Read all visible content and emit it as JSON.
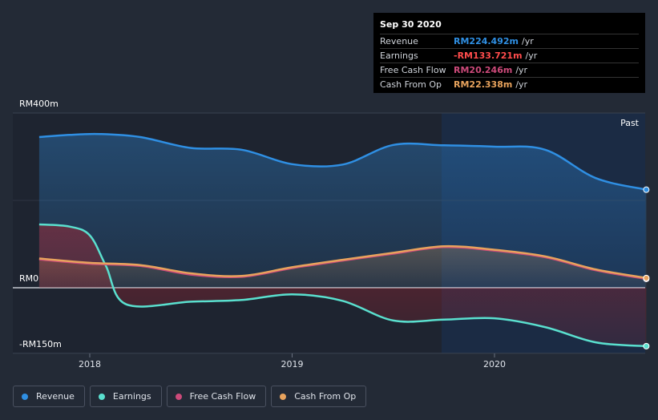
{
  "chart_data": {
    "type": "area",
    "x_ticks": [
      "2018",
      "2019",
      "2020"
    ],
    "y_ticks": [
      "RM400m",
      "RM0",
      "-RM150m"
    ],
    "ylim": [
      -150,
      400
    ],
    "past_label": "Past",
    "series": [
      {
        "name": "Revenue",
        "color": "#2f8fe3",
        "points": [
          [
            2017.75,
            345
          ],
          [
            2017.9,
            350
          ],
          [
            2018.05,
            352
          ],
          [
            2018.25,
            345
          ],
          [
            2018.5,
            320
          ],
          [
            2018.75,
            316
          ],
          [
            2019.0,
            283
          ],
          [
            2019.25,
            282
          ],
          [
            2019.5,
            327
          ],
          [
            2019.75,
            326
          ],
          [
            2020.0,
            323
          ],
          [
            2020.25,
            316
          ],
          [
            2020.5,
            251
          ],
          [
            2020.75,
            224.492
          ]
        ]
      },
      {
        "name": "Earnings",
        "color": "#5ae0cf",
        "points": [
          [
            2017.75,
            145
          ],
          [
            2017.9,
            140
          ],
          [
            2018.0,
            120
          ],
          [
            2018.08,
            50
          ],
          [
            2018.18,
            -38
          ],
          [
            2018.5,
            -32
          ],
          [
            2018.75,
            -28
          ],
          [
            2019.0,
            -15
          ],
          [
            2019.25,
            -30
          ],
          [
            2019.5,
            -75
          ],
          [
            2019.75,
            -73
          ],
          [
            2020.0,
            -70
          ],
          [
            2020.25,
            -90
          ],
          [
            2020.5,
            -125
          ],
          [
            2020.75,
            -133.721
          ]
        ]
      },
      {
        "name": "Free Cash Flow",
        "color": "#cc4a7a",
        "points": [
          [
            2017.75,
            65
          ],
          [
            2018.0,
            55
          ],
          [
            2018.25,
            50
          ],
          [
            2018.5,
            30
          ],
          [
            2018.75,
            25
          ],
          [
            2019.0,
            45
          ],
          [
            2019.25,
            62
          ],
          [
            2019.5,
            78
          ],
          [
            2019.75,
            93
          ],
          [
            2020.0,
            85
          ],
          [
            2020.25,
            70
          ],
          [
            2020.5,
            40
          ],
          [
            2020.75,
            20.246
          ]
        ]
      },
      {
        "name": "Cash From Op",
        "color": "#e8a35d",
        "points": [
          [
            2017.75,
            67
          ],
          [
            2018.0,
            57
          ],
          [
            2018.25,
            52
          ],
          [
            2018.5,
            33
          ],
          [
            2018.75,
            27
          ],
          [
            2019.0,
            47
          ],
          [
            2019.25,
            64
          ],
          [
            2019.5,
            80
          ],
          [
            2019.75,
            95
          ],
          [
            2020.0,
            87
          ],
          [
            2020.25,
            72
          ],
          [
            2020.5,
            42
          ],
          [
            2020.75,
            22.338
          ]
        ]
      }
    ]
  },
  "tooltip": {
    "date": "Sep 30 2020",
    "rows": [
      {
        "label": "Revenue",
        "value": "RM224.492m",
        "unit": "/yr",
        "color": "#2f8fe3"
      },
      {
        "label": "Earnings",
        "value": "-RM133.721m",
        "unit": "/yr",
        "color": "#ff4c4c"
      },
      {
        "label": "Free Cash Flow",
        "value": "RM20.246m",
        "unit": "/yr",
        "color": "#cc4a7a"
      },
      {
        "label": "Cash From Op",
        "value": "RM22.338m",
        "unit": "/yr",
        "color": "#e8a35d"
      }
    ]
  },
  "legend": [
    {
      "label": "Revenue",
      "color": "#2f8fe3"
    },
    {
      "label": "Earnings",
      "color": "#5ae0cf"
    },
    {
      "label": "Free Cash Flow",
      "color": "#cc4a7a"
    },
    {
      "label": "Cash From Op",
      "color": "#e8a35d"
    }
  ]
}
